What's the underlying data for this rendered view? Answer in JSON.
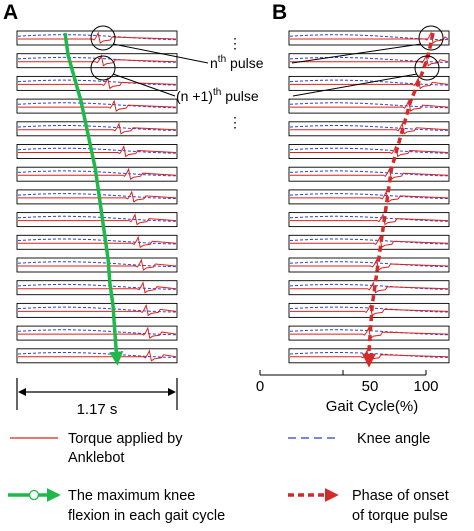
{
  "panel_a": {
    "label": "A",
    "time_span": "1.17 s"
  },
  "panel_b": {
    "label": "B",
    "xlabel": "Gait Cycle(%)",
    "ticks": [
      "0",
      "50",
      "100"
    ]
  },
  "annotations": {
    "nth_base": "n",
    "nth_sup": "th",
    "nth_suffix": " pulse",
    "n1_prefix": "(n +1)",
    "n1_sup": "th",
    "n1_suffix": " pulse",
    "ellipsis": "⋮"
  },
  "legend": {
    "torque": [
      "Torque applied by",
      "Anklebot"
    ],
    "knee": "Knee angle",
    "max_flexion": [
      "The maximum knee",
      "flexion in each gait cycle"
    ],
    "phase_onset": [
      "Phase of onset",
      "of torque pulse"
    ]
  },
  "colors": {
    "torque": "#e0201b",
    "knee": "#2b3fd6",
    "max_flexion": "#1fb84a",
    "phase_onset": "#d42a2a"
  },
  "chart_data": {
    "type": "line",
    "strip_count": 15,
    "x_range_pct": [
      0,
      100
    ],
    "max_knee_flexion_time_fraction": [
      0.3,
      0.32,
      0.36,
      0.4,
      0.43,
      0.46,
      0.49,
      0.51,
      0.53,
      0.55,
      0.57,
      0.58,
      0.6,
      0.61,
      0.62
    ],
    "torque_onset_gait_cycle_pct": [
      90,
      87,
      82,
      76,
      72,
      68,
      64,
      62,
      60,
      58,
      56,
      54,
      52,
      51,
      50
    ]
  }
}
